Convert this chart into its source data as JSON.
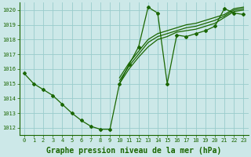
{
  "title": "Graphe pression niveau de la mer (hPa)",
  "bg_color": "#cce8e8",
  "grid_color": "#99cccc",
  "line_color": "#1a6600",
  "xlim": [
    -0.5,
    23.5
  ],
  "ylim": [
    1011.5,
    1020.5
  ],
  "xticks": [
    0,
    1,
    2,
    3,
    4,
    5,
    6,
    7,
    8,
    9,
    10,
    11,
    12,
    13,
    14,
    15,
    16,
    17,
    18,
    19,
    20,
    21,
    22,
    23
  ],
  "yticks": [
    1012,
    1013,
    1014,
    1015,
    1016,
    1017,
    1018,
    1019,
    1020
  ],
  "series": [
    {
      "x": [
        0,
        1,
        2,
        3,
        4,
        5,
        6,
        7,
        8,
        9,
        10,
        11,
        12,
        13,
        14,
        15,
        16,
        17,
        18,
        19,
        20,
        21,
        22,
        23
      ],
      "y": [
        1015.7,
        1015.0,
        1014.6,
        1014.2,
        1013.6,
        1013.0,
        1012.5,
        1012.1,
        1011.9,
        1011.9,
        1015.0,
        1016.3,
        1017.5,
        1020.2,
        1019.8,
        1015.0,
        1018.3,
        1018.2,
        1018.4,
        1018.6,
        1018.9,
        1020.1,
        1019.8,
        1019.7
      ]
    },
    {
      "x": [
        10,
        11,
        12,
        13,
        14,
        15,
        16,
        17,
        18,
        19,
        20,
        21,
        22,
        23
      ],
      "y": [
        1015.0,
        1016.0,
        1016.8,
        1017.5,
        1018.0,
        1018.2,
        1018.5,
        1018.6,
        1018.7,
        1018.9,
        1019.1,
        1019.5,
        1019.9,
        1020.0
      ]
    },
    {
      "x": [
        10,
        11,
        12,
        13,
        14,
        15,
        16,
        17,
        18,
        19,
        20,
        21,
        22,
        23
      ],
      "y": [
        1015.2,
        1016.2,
        1017.0,
        1017.8,
        1018.2,
        1018.4,
        1018.6,
        1018.8,
        1018.9,
        1019.1,
        1019.3,
        1019.6,
        1020.0,
        1020.1
      ]
    },
    {
      "x": [
        10,
        11,
        12,
        13,
        14,
        15,
        16,
        17,
        18,
        19,
        20,
        21,
        22,
        23
      ],
      "y": [
        1015.4,
        1016.4,
        1017.2,
        1018.0,
        1018.4,
        1018.6,
        1018.8,
        1019.0,
        1019.1,
        1019.3,
        1019.5,
        1019.7,
        1020.1,
        1020.2
      ]
    }
  ],
  "marker": "D",
  "marker_size": 2,
  "line_width": 0.9,
  "title_fontsize": 7,
  "tick_fontsize": 5
}
